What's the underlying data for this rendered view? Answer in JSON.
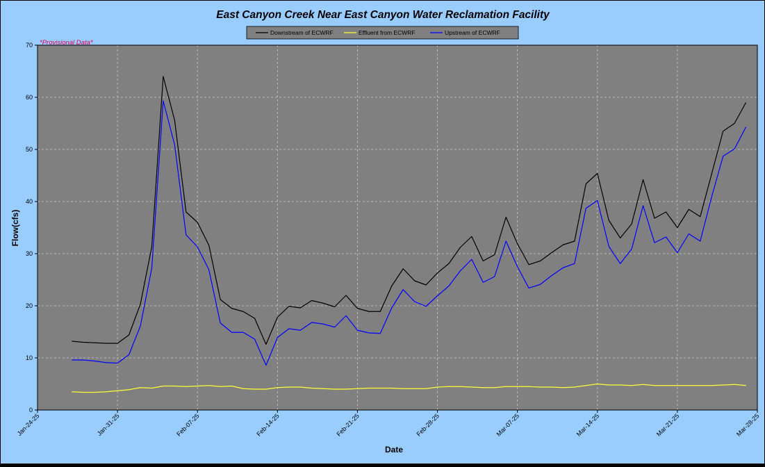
{
  "colors": {
    "background": "#99CCFF",
    "plot_area": "#808080",
    "legend_bg": "#808080",
    "grid": "#C8C8C8",
    "text": "#000000",
    "provisional": "#E0004A"
  },
  "chart_data": {
    "type": "line",
    "title": "East Canyon Creek Near East Canyon Water Reclamation Facility",
    "annotation": "*Provisional Data*",
    "xlabel": "Date",
    "ylabel": "Flow(cfs)",
    "ylim": [
      0,
      70
    ],
    "yticks": [
      0,
      10,
      20,
      30,
      40,
      50,
      60,
      70
    ],
    "xlim": [
      "2025-01-24",
      "2025-03-28"
    ],
    "xticks": [
      "2025-01-24",
      "2025-01-31",
      "2025-02-07",
      "2025-02-14",
      "2025-02-21",
      "2025-02-28",
      "2025-03-07",
      "2025-03-14",
      "2025-03-21",
      "2025-03-28"
    ],
    "xtick_labels": [
      "Jan-24-25",
      "Jan-31-25",
      "Feb-07-25",
      "Feb-14-25",
      "Feb-21-25",
      "Feb-28-25",
      "Mar-07-25",
      "Mar-14-25",
      "Mar-21-25",
      "Mar-28-25"
    ],
    "grid": true,
    "legend_position": "top-center",
    "x": [
      "2025-01-27",
      "2025-01-28",
      "2025-01-29",
      "2025-01-30",
      "2025-01-31",
      "2025-02-01",
      "2025-02-02",
      "2025-02-03",
      "2025-02-04",
      "2025-02-05",
      "2025-02-06",
      "2025-02-07",
      "2025-02-08",
      "2025-02-09",
      "2025-02-10",
      "2025-02-11",
      "2025-02-12",
      "2025-02-13",
      "2025-02-14",
      "2025-02-15",
      "2025-02-16",
      "2025-02-17",
      "2025-02-18",
      "2025-02-19",
      "2025-02-20",
      "2025-02-21",
      "2025-02-22",
      "2025-02-23",
      "2025-02-24",
      "2025-02-25",
      "2025-02-26",
      "2025-02-27",
      "2025-02-28",
      "2025-03-01",
      "2025-03-02",
      "2025-03-03",
      "2025-03-04",
      "2025-03-05",
      "2025-03-06",
      "2025-03-07",
      "2025-03-08",
      "2025-03-09",
      "2025-03-10",
      "2025-03-11",
      "2025-03-12",
      "2025-03-13",
      "2025-03-14",
      "2025-03-15",
      "2025-03-16",
      "2025-03-17",
      "2025-03-18",
      "2025-03-19",
      "2025-03-20",
      "2025-03-21",
      "2025-03-22",
      "2025-03-23",
      "2025-03-24",
      "2025-03-25",
      "2025-03-26",
      "2025-03-27"
    ],
    "series": [
      {
        "name": "Downstream of ECWRF",
        "color": "#000000",
        "values": [
          13.2,
          13.0,
          12.9,
          12.8,
          12.8,
          14.4,
          20.3,
          31.3,
          64.0,
          55.6,
          38.0,
          36.0,
          31.6,
          21.2,
          19.5,
          18.9,
          17.6,
          12.6,
          17.8,
          19.9,
          19.6,
          21.0,
          20.5,
          19.8,
          22.0,
          19.5,
          18.9,
          18.9,
          23.8,
          27.1,
          24.8,
          24.0,
          26.3,
          28.1,
          31.2,
          33.3,
          28.6,
          29.8,
          37.0,
          31.9,
          27.9,
          28.6,
          30.2,
          31.7,
          32.4,
          43.4,
          45.4,
          36.4,
          33.0,
          35.7,
          44.2,
          36.8,
          38.0,
          35.0,
          38.5,
          37.1,
          45.3,
          53.5,
          55.0,
          59.0
        ]
      },
      {
        "name": "Effluent from ECWRF",
        "color": "#FFFF33",
        "values": [
          3.5,
          3.4,
          3.4,
          3.5,
          3.7,
          3.9,
          4.3,
          4.2,
          4.6,
          4.6,
          4.5,
          4.6,
          4.7,
          4.5,
          4.6,
          4.1,
          4.0,
          4.0,
          4.3,
          4.4,
          4.4,
          4.2,
          4.1,
          4.0,
          4.0,
          4.1,
          4.2,
          4.2,
          4.2,
          4.1,
          4.1,
          4.1,
          4.4,
          4.5,
          4.5,
          4.4,
          4.3,
          4.3,
          4.5,
          4.5,
          4.5,
          4.4,
          4.4,
          4.3,
          4.4,
          4.7,
          5.0,
          4.8,
          4.8,
          4.7,
          4.9,
          4.7,
          4.7,
          4.7,
          4.7,
          4.7,
          4.7,
          4.8,
          4.9,
          4.7
        ]
      },
      {
        "name": "Upstream of ECWRF",
        "color": "#0000FF",
        "values": [
          9.6,
          9.6,
          9.4,
          9.1,
          9.0,
          10.6,
          16.1,
          27.2,
          59.3,
          50.9,
          33.6,
          31.3,
          26.9,
          16.7,
          14.9,
          14.9,
          13.6,
          8.6,
          13.9,
          15.6,
          15.3,
          16.8,
          16.5,
          15.9,
          18.1,
          15.3,
          14.8,
          14.7,
          19.6,
          23.1,
          20.8,
          19.9,
          21.9,
          23.8,
          26.7,
          28.9,
          24.5,
          25.6,
          32.4,
          27.5,
          23.4,
          24.1,
          25.8,
          27.3,
          28.1,
          38.7,
          40.2,
          31.4,
          28.1,
          30.9,
          39.2,
          32.1,
          33.2,
          30.2,
          33.8,
          32.4,
          40.9,
          48.7,
          50.1,
          54.3
        ]
      }
    ]
  }
}
